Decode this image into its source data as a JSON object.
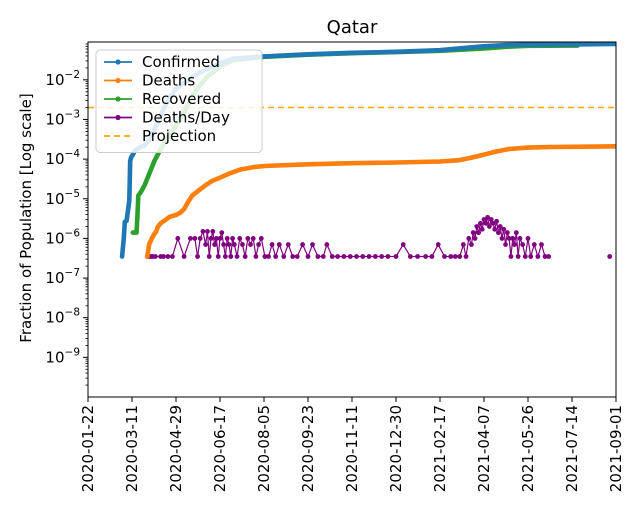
{
  "chart_data": {
    "type": "line",
    "title": "Qatar",
    "xlabel": "",
    "ylabel": "Fraction of Population [Log scale]",
    "y_scale": "log",
    "ylim": [
      1e-10,
      0.09
    ],
    "xlim": [
      "2020-01-22",
      "2021-09-01"
    ],
    "grid": false,
    "legend_position": "top-left",
    "x_tick_labels": [
      "2020-01-22",
      "2020-03-11",
      "2020-04-29",
      "2020-06-17",
      "2020-08-05",
      "2020-09-23",
      "2020-11-11",
      "2020-12-30",
      "2021-02-17",
      "2021-04-07",
      "2021-05-26",
      "2021-07-14",
      "2021-09-01"
    ],
    "y_ticks": [
      {
        "value": 1e-09,
        "base": "10",
        "exp": "−9"
      },
      {
        "value": 1e-08,
        "base": "10",
        "exp": "−8"
      },
      {
        "value": 1e-07,
        "base": "10",
        "exp": "−7"
      },
      {
        "value": 1e-06,
        "base": "10",
        "exp": "−6"
      },
      {
        "value": 1e-05,
        "base": "10",
        "exp": "−5"
      },
      {
        "value": 0.0001,
        "base": "10",
        "exp": "−4"
      },
      {
        "value": 0.001,
        "base": "10",
        "exp": "−3"
      },
      {
        "value": 0.01,
        "base": "10",
        "exp": "−2"
      }
    ],
    "series": [
      {
        "name": "Confirmed",
        "color": "#1f77b4",
        "style": "line-marker",
        "points": [
          [
            "2020-02-29",
            3.5e-07
          ],
          [
            "2020-03-02",
            1.1e-06
          ],
          [
            "2020-03-03",
            2.6e-06
          ],
          [
            "2020-03-05",
            2.8e-06
          ],
          [
            "2020-03-07",
            6e-06
          ],
          [
            "2020-03-08",
            9e-06
          ],
          [
            "2020-03-09",
            9e-05
          ],
          [
            "2020-03-10",
            0.00011
          ],
          [
            "2020-03-12",
            0.00013
          ],
          [
            "2020-03-14",
            0.00016
          ],
          [
            "2020-03-17",
            0.00018
          ],
          [
            "2020-03-20",
            0.0002
          ],
          [
            "2020-03-25",
            0.00022
          ],
          [
            "2020-03-31",
            0.00032
          ],
          [
            "2020-04-08",
            0.0008
          ],
          [
            "2020-04-15",
            0.0018
          ],
          [
            "2020-04-22",
            0.0035
          ],
          [
            "2020-04-29",
            0.006
          ],
          [
            "2020-05-10",
            0.009
          ],
          [
            "2020-05-20",
            0.013
          ],
          [
            "2020-06-01",
            0.018
          ],
          [
            "2020-06-17",
            0.026
          ],
          [
            "2020-07-01",
            0.034
          ],
          [
            "2020-08-05",
            0.039
          ],
          [
            "2020-09-23",
            0.044
          ],
          [
            "2020-11-11",
            0.048
          ],
          [
            "2020-12-30",
            0.051
          ],
          [
            "2021-02-17",
            0.056
          ],
          [
            "2021-03-15",
            0.063
          ],
          [
            "2021-04-07",
            0.07
          ],
          [
            "2021-05-01",
            0.075
          ],
          [
            "2021-05-26",
            0.077
          ],
          [
            "2021-07-14",
            0.078
          ],
          [
            "2021-09-01",
            0.08
          ]
        ]
      },
      {
        "name": "Deaths",
        "color": "#ff7f0e",
        "style": "line-marker",
        "points": [
          [
            "2020-03-28",
            3.5e-07
          ],
          [
            "2020-03-30",
            7e-07
          ],
          [
            "2020-04-02",
            1e-06
          ],
          [
            "2020-04-05",
            1.3e-06
          ],
          [
            "2020-04-07",
            1.5e-06
          ],
          [
            "2020-04-09",
            2e-06
          ],
          [
            "2020-04-12",
            2.4e-06
          ],
          [
            "2020-04-15",
            2.7e-06
          ],
          [
            "2020-04-18",
            3e-06
          ],
          [
            "2020-04-22",
            3.5e-06
          ],
          [
            "2020-04-29",
            3.9e-06
          ],
          [
            "2020-05-04",
            4.5e-06
          ],
          [
            "2020-05-08",
            5.5e-06
          ],
          [
            "2020-05-12",
            8e-06
          ],
          [
            "2020-05-17",
            1.2e-05
          ],
          [
            "2020-05-24",
            1.6e-05
          ],
          [
            "2020-06-01",
            2.2e-05
          ],
          [
            "2020-06-08",
            2.8e-05
          ],
          [
            "2020-06-17",
            3.4e-05
          ],
          [
            "2020-06-28",
            4.4e-05
          ],
          [
            "2020-07-10",
            5.5e-05
          ],
          [
            "2020-07-25",
            6.3e-05
          ],
          [
            "2020-08-05",
            6.7e-05
          ],
          [
            "2020-09-23",
            7.4e-05
          ],
          [
            "2020-11-11",
            7.9e-05
          ],
          [
            "2020-12-30",
            8.2e-05
          ],
          [
            "2021-02-17",
            8.7e-05
          ],
          [
            "2021-03-10",
            9.4e-05
          ],
          [
            "2021-03-25",
            0.00011
          ],
          [
            "2021-04-07",
            0.00013
          ],
          [
            "2021-04-20",
            0.000155
          ],
          [
            "2021-05-05",
            0.00018
          ],
          [
            "2021-05-26",
            0.000195
          ],
          [
            "2021-06-20",
            0.000202
          ],
          [
            "2021-07-14",
            0.000205
          ],
          [
            "2021-09-01",
            0.00021
          ]
        ]
      },
      {
        "name": "Recovered",
        "color": "#2ca02c",
        "style": "line-marker",
        "points": [
          [
            "2020-03-12",
            1.4e-06
          ],
          [
            "2020-03-16",
            1.4e-06
          ],
          [
            "2020-03-17",
            3.5e-06
          ],
          [
            "2020-03-18",
            1.2e-05
          ],
          [
            "2020-03-21",
            1.5e-05
          ],
          [
            "2020-03-25",
            2.2e-05
          ],
          [
            "2020-03-30",
            4.2e-05
          ],
          [
            "2020-04-05",
            9e-05
          ],
          [
            "2020-04-12",
            0.00018
          ],
          [
            "2020-04-20",
            0.00035
          ],
          [
            "2020-04-29",
            0.0007
          ],
          [
            "2020-05-08",
            0.0015
          ],
          [
            "2020-05-16",
            0.0035
          ],
          [
            "2020-05-25",
            0.007
          ],
          [
            "2020-06-03",
            0.012
          ],
          [
            "2020-06-17",
            0.022
          ],
          [
            "2020-07-01",
            0.031
          ],
          [
            "2020-08-05",
            0.038
          ],
          [
            "2020-09-23",
            0.043
          ],
          [
            "2020-11-11",
            0.047
          ],
          [
            "2020-12-30",
            0.05
          ],
          [
            "2021-02-17",
            0.054
          ],
          [
            "2021-03-15",
            0.058
          ],
          [
            "2021-04-07",
            0.062
          ],
          [
            "2021-05-01",
            0.068
          ],
          [
            "2021-05-26",
            0.072
          ],
          [
            "2021-07-14",
            0.073
          ],
          [
            "2021-07-20",
            0.073
          ]
        ]
      },
      {
        "name": "Deaths/Day",
        "color": "#800080",
        "style": "stepped-dots",
        "points": [
          [
            "2020-03-28",
            3.5e-07
          ],
          [
            "2020-03-30",
            3.5e-07
          ],
          [
            "2020-04-01",
            3.5e-07
          ],
          [
            "2020-04-03",
            3.5e-07
          ],
          [
            "2020-04-06",
            3.5e-07
          ],
          [
            "2020-04-12",
            3.5e-07
          ],
          [
            "2020-04-15",
            3.5e-07
          ],
          [
            "2020-04-20",
            3.5e-07
          ],
          [
            "2020-04-25",
            3.5e-07
          ],
          [
            "2020-05-01",
            1e-06
          ],
          [
            "2020-05-08",
            3.5e-07
          ],
          [
            "2020-05-15",
            1e-06
          ],
          [
            "2020-05-20",
            1e-06
          ],
          [
            "2020-05-23",
            3.5e-07
          ],
          [
            "2020-05-26",
            1e-06
          ],
          [
            "2020-05-29",
            1.5e-06
          ],
          [
            "2020-06-01",
            7e-07
          ],
          [
            "2020-06-03",
            1.5e-06
          ],
          [
            "2020-06-05",
            3.5e-07
          ],
          [
            "2020-06-07",
            1e-06
          ],
          [
            "2020-06-09",
            1.5e-06
          ],
          [
            "2020-06-11",
            7e-07
          ],
          [
            "2020-06-13",
            1e-06
          ],
          [
            "2020-06-15",
            3.5e-07
          ],
          [
            "2020-06-17",
            1e-06
          ],
          [
            "2020-06-19",
            1.4e-06
          ],
          [
            "2020-06-21",
            7e-07
          ],
          [
            "2020-06-23",
            3.5e-07
          ],
          [
            "2020-06-25",
            1e-06
          ],
          [
            "2020-06-27",
            7e-07
          ],
          [
            "2020-06-29",
            3.5e-07
          ],
          [
            "2020-07-01",
            1e-06
          ],
          [
            "2020-07-03",
            7e-07
          ],
          [
            "2020-07-06",
            3.5e-07
          ],
          [
            "2020-07-09",
            1e-06
          ],
          [
            "2020-07-12",
            7e-07
          ],
          [
            "2020-07-15",
            3.5e-07
          ],
          [
            "2020-07-18",
            1e-06
          ],
          [
            "2020-07-21",
            7e-07
          ],
          [
            "2020-07-24",
            1e-06
          ],
          [
            "2020-07-27",
            3.5e-07
          ],
          [
            "2020-07-30",
            7e-07
          ],
          [
            "2020-08-02",
            1e-06
          ],
          [
            "2020-08-06",
            3.5e-07
          ],
          [
            "2020-08-10",
            3.5e-07
          ],
          [
            "2020-08-14",
            7e-07
          ],
          [
            "2020-08-18",
            3.5e-07
          ],
          [
            "2020-08-22",
            7e-07
          ],
          [
            "2020-08-27",
            3.5e-07
          ],
          [
            "2020-09-01",
            7e-07
          ],
          [
            "2020-09-06",
            3.5e-07
          ],
          [
            "2020-09-11",
            3.5e-07
          ],
          [
            "2020-09-17",
            7e-07
          ],
          [
            "2020-09-23",
            3.5e-07
          ],
          [
            "2020-09-28",
            7e-07
          ],
          [
            "2020-10-04",
            3.5e-07
          ],
          [
            "2020-10-10",
            3.5e-07
          ],
          [
            "2020-10-14",
            7e-07
          ],
          [
            "2020-10-20",
            3.5e-07
          ],
          [
            "2020-10-26",
            3.5e-07
          ],
          [
            "2020-11-02",
            3.5e-07
          ],
          [
            "2020-11-09",
            3.5e-07
          ],
          [
            "2020-11-16",
            3.5e-07
          ],
          [
            "2020-11-23",
            3.5e-07
          ],
          [
            "2020-11-30",
            3.5e-07
          ],
          [
            "2020-12-07",
            3.5e-07
          ],
          [
            "2020-12-14",
            3.5e-07
          ],
          [
            "2020-12-21",
            3.5e-07
          ],
          [
            "2020-12-30",
            3.5e-07
          ],
          [
            "2021-01-07",
            7e-07
          ],
          [
            "2021-01-15",
            3.5e-07
          ],
          [
            "2021-01-23",
            3.5e-07
          ],
          [
            "2021-02-01",
            3.5e-07
          ],
          [
            "2021-02-08",
            3.5e-07
          ],
          [
            "2021-02-15",
            7e-07
          ],
          [
            "2021-02-22",
            3.5e-07
          ],
          [
            "2021-03-01",
            3.5e-07
          ],
          [
            "2021-03-06",
            3.5e-07
          ],
          [
            "2021-03-11",
            3.5e-07
          ],
          [
            "2021-03-15",
            7e-07
          ],
          [
            "2021-03-18",
            3.5e-07
          ],
          [
            "2021-03-21",
            1e-06
          ],
          [
            "2021-03-24",
            7e-07
          ],
          [
            "2021-03-26",
            1.4e-06
          ],
          [
            "2021-03-28",
            1e-06
          ],
          [
            "2021-03-30",
            2e-06
          ],
          [
            "2021-04-01",
            1.4e-06
          ],
          [
            "2021-04-03",
            2.4e-06
          ],
          [
            "2021-04-05",
            1.7e-06
          ],
          [
            "2021-04-07",
            3e-06
          ],
          [
            "2021-04-09",
            2.4e-06
          ],
          [
            "2021-04-11",
            3.4e-06
          ],
          [
            "2021-04-13",
            2e-06
          ],
          [
            "2021-04-15",
            3e-06
          ],
          [
            "2021-04-17",
            2.4e-06
          ],
          [
            "2021-04-19",
            1.7e-06
          ],
          [
            "2021-04-21",
            2.7e-06
          ],
          [
            "2021-04-23",
            1.4e-06
          ],
          [
            "2021-04-25",
            2e-06
          ],
          [
            "2021-04-27",
            1e-06
          ],
          [
            "2021-04-29",
            1.7e-06
          ],
          [
            "2021-05-01",
            7e-07
          ],
          [
            "2021-05-03",
            1.4e-06
          ],
          [
            "2021-05-05",
            1e-06
          ],
          [
            "2021-05-07",
            3.5e-07
          ],
          [
            "2021-05-09",
            1e-06
          ],
          [
            "2021-05-11",
            7e-07
          ],
          [
            "2021-05-13",
            1.4e-06
          ],
          [
            "2021-05-15",
            3.5e-07
          ],
          [
            "2021-05-17",
            1e-06
          ],
          [
            "2021-05-20",
            7e-07
          ],
          [
            "2021-05-23",
            3.5e-07
          ],
          [
            "2021-05-26",
            1e-06
          ],
          [
            "2021-05-29",
            3.5e-07
          ],
          [
            "2021-06-02",
            7e-07
          ],
          [
            "2021-06-06",
            3.5e-07
          ],
          [
            "2021-06-10",
            7e-07
          ],
          [
            "2021-06-14",
            3.5e-07
          ],
          [
            "2021-06-18",
            3.5e-07
          ],
          [
            "2021-08-25",
            3.5e-07
          ]
        ]
      },
      {
        "name": "Projection",
        "color": "#ffa500",
        "style": "dashed-hline",
        "value": 0.002
      }
    ]
  }
}
